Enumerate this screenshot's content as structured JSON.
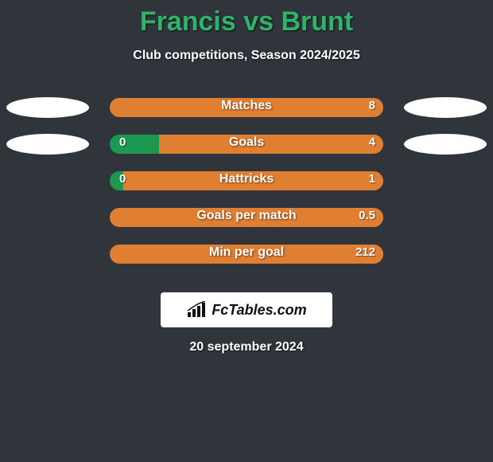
{
  "title": "Francis vs Brunt",
  "subtitle": "Club competitions, Season 2024/2025",
  "date": "20 september 2024",
  "badge": {
    "text": "FcTables.com"
  },
  "colors": {
    "left_segment": "#1d9851",
    "right_segment": "#e07f32",
    "left_segment_minor": "#3fa768",
    "track_fallback": "#e07f32"
  },
  "track_width": 344,
  "stats": [
    {
      "label": "Matches",
      "left_display": "",
      "right_display": "8",
      "left_width_pct": 0,
      "right_width_pct": 100,
      "show_left_photo": true,
      "show_right_photo": true,
      "left_color": "#1d9851",
      "right_color": "#e07f32"
    },
    {
      "label": "Goals",
      "left_display": "0",
      "right_display": "4",
      "left_width_pct": 18,
      "right_width_pct": 82,
      "show_left_photo": true,
      "show_right_photo": true,
      "left_color": "#1d9851",
      "right_color": "#e07f32"
    },
    {
      "label": "Hattricks",
      "left_display": "0",
      "right_display": "1",
      "left_width_pct": 5,
      "right_width_pct": 95,
      "show_left_photo": false,
      "show_right_photo": false,
      "left_color": "#1d9851",
      "right_color": "#e07f32"
    },
    {
      "label": "Goals per match",
      "left_display": "",
      "right_display": "0.5",
      "left_width_pct": 0,
      "right_width_pct": 100,
      "show_left_photo": false,
      "show_right_photo": false,
      "left_color": "#1d9851",
      "right_color": "#e07f32"
    },
    {
      "label": "Min per goal",
      "left_display": "",
      "right_display": "212",
      "left_width_pct": 0,
      "right_width_pct": 100,
      "show_left_photo": false,
      "show_right_photo": false,
      "left_color": "#1d9851",
      "right_color": "#e07f32"
    }
  ]
}
